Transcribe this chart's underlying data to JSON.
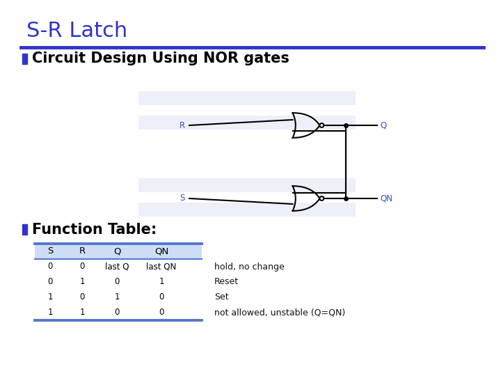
{
  "title": "S-R Latch",
  "title_color": "#3333cc",
  "title_fontsize": 22,
  "blue_line_color": "#3333cc",
  "bullet_color": "#3333cc",
  "section1": "Circuit Design Using NOR gates",
  "section2": "Function Table:",
  "section_fontsize": 15,
  "table_headers": [
    "S",
    "R",
    "Q",
    "QN"
  ],
  "table_rows": [
    [
      "0",
      "0",
      "last Q",
      "last QN"
    ],
    [
      "0",
      "1",
      "0",
      "1"
    ],
    [
      "1",
      "0",
      "1",
      "0"
    ],
    [
      "1",
      "1",
      "0",
      "0"
    ]
  ],
  "table_notes": [
    "hold, no change",
    "Reset",
    "Set",
    "not allowed, unstable (Q=QN)"
  ],
  "bg_color": "#ffffff",
  "table_header_bg": "#ddeeff",
  "table_line_color": "#5577cc",
  "text_color": "#000000",
  "circuit_color": "#000000",
  "gate_label_color": "#3355aa",
  "note_color": "#111111"
}
